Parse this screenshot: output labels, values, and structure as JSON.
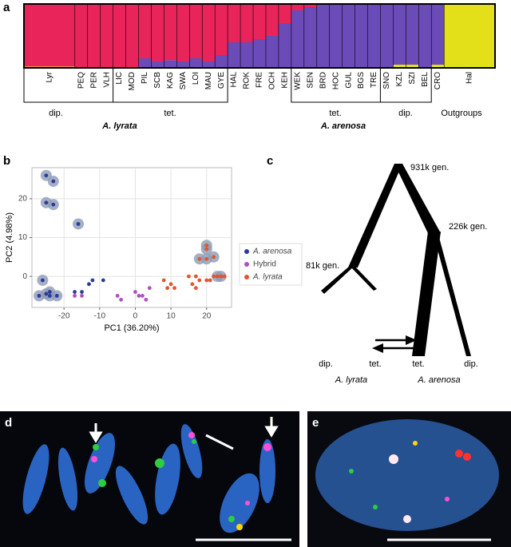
{
  "panel_labels": [
    "a",
    "b",
    "c",
    "d",
    "e"
  ],
  "chart_data": [
    {
      "type": "bar",
      "stacked": true,
      "categories": [
        "Lyr",
        "PEQ",
        "PER",
        "VLH",
        "LIC",
        "MOD",
        "PIL",
        "SCB",
        "KAG",
        "SWA",
        "LOI",
        "MAU",
        "GYE",
        "HAL",
        "ROK",
        "FRE",
        "OCH",
        "KEH",
        "WEK",
        "SEN",
        "BRD",
        "HOC",
        "GUL",
        "BGS",
        "TRE",
        "SNO",
        "KZL",
        "SZI",
        "BEL",
        "CRO",
        "Hal"
      ],
      "ylim": [
        0,
        1
      ],
      "series": [
        {
          "color": "#e8245a",
          "values": [
            0.98,
            1,
            1,
            1,
            1,
            1,
            0.85,
            0.9,
            0.88,
            0.9,
            0.85,
            0.9,
            0.8,
            0.6,
            0.6,
            0.55,
            0.5,
            0.3,
            0.1,
            0.05,
            0,
            0,
            0,
            0,
            0,
            0,
            0,
            0,
            0,
            0,
            0
          ]
        },
        {
          "color": "#6a4bb8",
          "values": [
            0,
            0,
            0,
            0,
            0,
            0,
            0.15,
            0.1,
            0.12,
            0.1,
            0.15,
            0.1,
            0.2,
            0.4,
            0.4,
            0.45,
            0.5,
            0.7,
            0.9,
            0.95,
            1,
            1,
            1,
            1,
            1,
            1,
            0.95,
            0.95,
            1,
            0.95,
            0
          ]
        },
        {
          "color": "#e3e019",
          "values": [
            0.02,
            0,
            0,
            0,
            0,
            0,
            0,
            0,
            0,
            0,
            0,
            0,
            0,
            0,
            0,
            0,
            0,
            0,
            0,
            0,
            0,
            0,
            0,
            0,
            0,
            0,
            0.05,
            0.05,
            0,
            0.05,
            1
          ]
        }
      ]
    },
    {
      "type": "scatter",
      "x_label": "PC1 (36.20%)",
      "y_label": "PC2 (4.98%)",
      "xlim": [
        -29,
        27
      ],
      "ylim": [
        -8,
        28
      ],
      "xticks": [
        -20,
        -10,
        0,
        10,
        20
      ],
      "yticks": [
        0,
        10,
        20
      ],
      "grid": true,
      "legend": "right",
      "series": [
        {
          "name": "A. arenosa",
          "color": "#2a3b9c",
          "x": [
            -25,
            -23,
            -25,
            -23,
            -16,
            -26,
            -27,
            -25,
            -24,
            -22,
            -24,
            -13,
            -12,
            -9,
            -17,
            -15
          ],
          "y": [
            26,
            24.5,
            19,
            18.5,
            13.5,
            -1,
            -5,
            -4.5,
            -5,
            -5,
            -4,
            -2,
            -1,
            -1,
            -4,
            -4
          ],
          "halo": [
            true,
            true,
            true,
            true,
            true,
            true,
            true,
            true,
            true,
            true,
            true,
            false,
            false,
            false,
            false,
            false
          ]
        },
        {
          "name": "Hybrid",
          "color": "#b04fc0",
          "x": [
            -17,
            -15,
            -5,
            -4,
            0,
            1,
            2,
            4,
            3
          ],
          "y": [
            -5,
            -5,
            -5,
            -6,
            -4,
            -5,
            -5,
            -3,
            -6
          ],
          "halo": [
            false,
            false,
            false,
            false,
            false,
            false,
            false,
            false,
            false
          ]
        },
        {
          "name": "A. lyrata",
          "color": "#e0562f",
          "x": [
            8,
            9,
            10,
            11,
            15,
            17,
            18,
            16,
            17,
            20,
            22,
            21,
            24,
            25,
            18,
            20,
            20,
            22,
            23,
            24,
            20
          ],
          "y": [
            -1,
            -3,
            -2,
            -3,
            0,
            0,
            -1,
            -2,
            -3,
            -1,
            0,
            -1,
            0,
            0,
            4.5,
            4.5,
            7,
            5,
            0,
            0,
            8
          ],
          "halo": [
            false,
            false,
            false,
            false,
            false,
            false,
            false,
            false,
            false,
            false,
            false,
            false,
            false,
            false,
            true,
            true,
            true,
            true,
            true,
            true,
            true
          ]
        }
      ]
    }
  ],
  "structure_groups": {
    "ploidy": [
      "dip.",
      "tet.",
      "tet.",
      "dip."
    ],
    "outgroups": "Outgroups",
    "species": [
      "A. lyrata",
      "A. arenosa"
    ]
  },
  "tree": {
    "times": [
      "931k gen.",
      "226k gen.",
      "81k gen."
    ],
    "ploidy": [
      "dip.",
      "tet.",
      "tet.",
      "dip."
    ],
    "species": [
      "A. lyrata",
      "A. arenosa"
    ]
  }
}
